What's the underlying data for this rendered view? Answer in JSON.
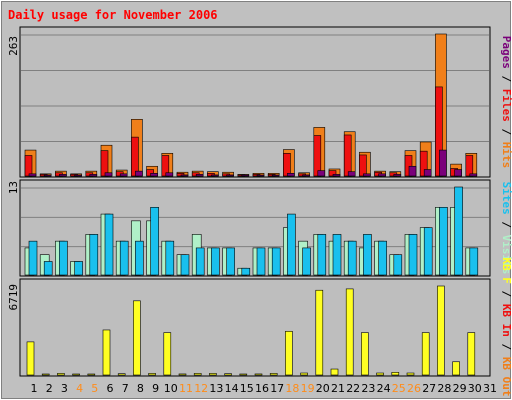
{
  "chart_data": {
    "type": "bar",
    "title": "Daily usage for November 2006",
    "categories": [
      "1",
      "2",
      "3",
      "4",
      "5",
      "6",
      "7",
      "8",
      "9",
      "10",
      "11",
      "12",
      "13",
      "14",
      "15",
      "16",
      "17",
      "18",
      "19",
      "20",
      "21",
      "22",
      "23",
      "24",
      "25",
      "26",
      "27",
      "28",
      "29",
      "30",
      "31"
    ],
    "weekend_days": [
      "4",
      "5",
      "11",
      "12",
      "18",
      "19",
      "25",
      "26"
    ],
    "colors": {
      "background": "#c0c0c0",
      "plot_background": "#bebebe",
      "grid": "#808080",
      "title": "#ff0000",
      "weekday_label": "#000000",
      "weekend_label": "#ff8c1a",
      "hits": "#f07f1a",
      "files": "#ee1010",
      "pages": "#7a007a",
      "visits": "#b0f0c8",
      "sites": "#19c0ee",
      "kb": "#ffff22"
    },
    "panels": [
      {
        "id": "hits-files-pages",
        "ymax_label": "263",
        "ylim": [
          0,
          263
        ],
        "legend": [
          {
            "label": "Pages",
            "color": "#7a007a"
          },
          {
            "label": "Files",
            "color": "#ee1010"
          },
          {
            "label": "Hits",
            "color": "#f07f1a"
          }
        ],
        "series": [
          {
            "name": "Hits",
            "color": "#f07f1a",
            "values": [
              48,
              4,
              9,
              4,
              9,
              57,
              11,
              105,
              18,
              42,
              7,
              9,
              8,
              7,
              3,
              5,
              5,
              49,
              6,
              90,
              13,
              82,
              44,
              9,
              8,
              47,
              63,
              263,
              22,
              42,
              0
            ]
          },
          {
            "name": "Files",
            "color": "#ee1010",
            "values": [
              38,
              3,
              6,
              3,
              6,
              47,
              8,
              72,
              12,
              38,
              5,
              6,
              5,
              4,
              2,
              3,
              3,
              42,
              4,
              75,
              10,
              76,
              39,
              7,
              6,
              38,
              46,
              165,
              14,
              38,
              0
            ]
          },
          {
            "name": "Pages",
            "color": "#7a007a",
            "values": [
              4,
              1,
              3,
              1,
              3,
              6,
              4,
              9,
              5,
              6,
              2,
              3,
              2,
              2,
              1,
              1,
              1,
              5,
              2,
              10,
              3,
              8,
              4,
              4,
              3,
              18,
              12,
              48,
              12,
              4,
              0
            ]
          }
        ]
      },
      {
        "id": "visits-sites",
        "ymax_label": "13",
        "ylim": [
          0,
          13
        ],
        "legend": [
          {
            "label": "Sites",
            "color": "#19c0ee"
          },
          {
            "label": "Visits",
            "color": "#b0f0c8"
          }
        ],
        "series": [
          {
            "name": "Visits",
            "color": "#b0f0c8",
            "values": [
              4,
              3,
              5,
              2,
              6,
              9,
              5,
              8,
              8,
              5,
              3,
              6,
              4,
              4,
              1,
              4,
              4,
              7,
              5,
              6,
              5,
              5,
              4,
              5,
              3,
              6,
              7,
              10,
              10,
              4,
              0
            ]
          },
          {
            "name": "Sites",
            "color": "#19c0ee",
            "values": [
              5,
              2,
              5,
              2,
              6,
              9,
              5,
              5,
              10,
              5,
              3,
              4,
              4,
              4,
              1,
              4,
              4,
              9,
              4,
              6,
              6,
              5,
              6,
              5,
              3,
              6,
              7,
              10,
              13,
              4,
              0
            ]
          }
        ]
      },
      {
        "id": "kb",
        "ymax_label": "6719",
        "ylim": [
          0,
          6719
        ],
        "legend": [
          {
            "label": "KB F",
            "color": "#ffff22"
          },
          {
            "label": "KB In",
            "color": "#ee1010"
          },
          {
            "label": "KB Out",
            "color": "#f07f1a"
          }
        ],
        "series": [
          {
            "name": "KB F",
            "color": "#ffff22",
            "values": [
              2500,
              50,
              120,
              50,
              50,
              3400,
              100,
              5600,
              120,
              3200,
              80,
              120,
              120,
              100,
              50,
              80,
              120,
              3300,
              150,
              6400,
              450,
              6500,
              3200,
              150,
              200,
              150,
              3200,
              6719,
              1000,
              3200,
              0
            ]
          }
        ]
      }
    ]
  }
}
